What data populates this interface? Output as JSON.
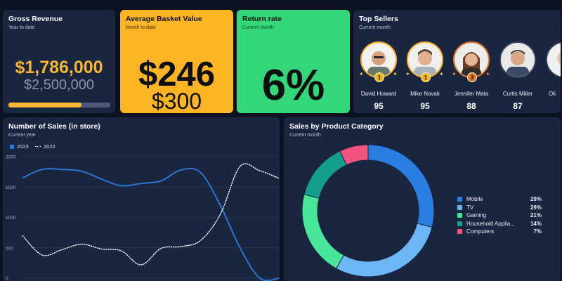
{
  "gross": {
    "title": "Gross Revenue",
    "subtitle": "Year to date",
    "value": "$1,786,000",
    "target": "$2,500,000",
    "progress": 0.7144,
    "accent": "#f7b733"
  },
  "basket": {
    "title": "Average Basket Value",
    "subtitle": "Month to date",
    "value": "$246",
    "target": "$300",
    "color": "#fbb424"
  },
  "return_rate": {
    "title": "Return rate",
    "subtitle": "Current month",
    "value": "6%",
    "color": "#34d67a"
  },
  "top_sellers": {
    "title": "Top Sellers",
    "subtitle": "Current month",
    "sellers": [
      {
        "name": "David Howard",
        "score": "95",
        "medal": "1"
      },
      {
        "name": "Mike Novak",
        "score": "95",
        "medal": "1"
      },
      {
        "name": "Jennifer Mata",
        "score": "88",
        "medal": "3"
      },
      {
        "name": "Curtis Miller",
        "score": "87",
        "medal": ""
      },
      {
        "name": "Oli",
        "score": "",
        "medal": ""
      }
    ]
  },
  "sales_chart": {
    "title": "Number of Sales (in store)",
    "subtitle": "Current year",
    "legend": [
      "2023",
      "2022"
    ]
  },
  "category_chart": {
    "title": "Sales by Product Category",
    "subtitle": "Current month"
  },
  "chart_data": [
    {
      "type": "line",
      "title": "Number of Sales (in store)",
      "subtitle": "Current year",
      "ylim": [
        0,
        2000
      ],
      "yticks": [
        "0",
        "500",
        "1000",
        "1500",
        "2000"
      ],
      "grid": true,
      "legend_position": "top-left",
      "x": [
        0,
        1,
        2,
        3,
        4,
        5,
        6,
        7,
        8,
        9,
        10,
        11,
        12,
        13
      ],
      "series": [
        {
          "name": "2023",
          "color": "#2a7de1",
          "style": "solid",
          "values": [
            1650,
            1790,
            1790,
            1760,
            1630,
            1520,
            1560,
            1600,
            1780,
            1740,
            1200,
            500,
            0,
            0
          ]
        },
        {
          "name": "2022",
          "color": "#ffffff",
          "style": "dotted",
          "values": [
            700,
            380,
            470,
            560,
            480,
            450,
            220,
            490,
            520,
            620,
            1050,
            1840,
            1770,
            1640
          ]
        }
      ]
    },
    {
      "type": "pie",
      "title": "Sales by Product Category",
      "subtitle": "Current month",
      "donut": true,
      "legend_position": "right",
      "slices": [
        {
          "label": "Mobile",
          "value": 29,
          "pct_label": "29%",
          "color": "#2a7de1"
        },
        {
          "label": "TV",
          "value": 29,
          "pct_label": "29%",
          "color": "#6cb6f5"
        },
        {
          "label": "Gaming",
          "value": 21,
          "pct_label": "21%",
          "color": "#48e59b"
        },
        {
          "label": "Household Applia...",
          "value": 14,
          "pct_label": "14%",
          "color": "#169e8c"
        },
        {
          "label": "Computers",
          "value": 7,
          "pct_label": "7%",
          "color": "#f2547f"
        }
      ]
    }
  ]
}
